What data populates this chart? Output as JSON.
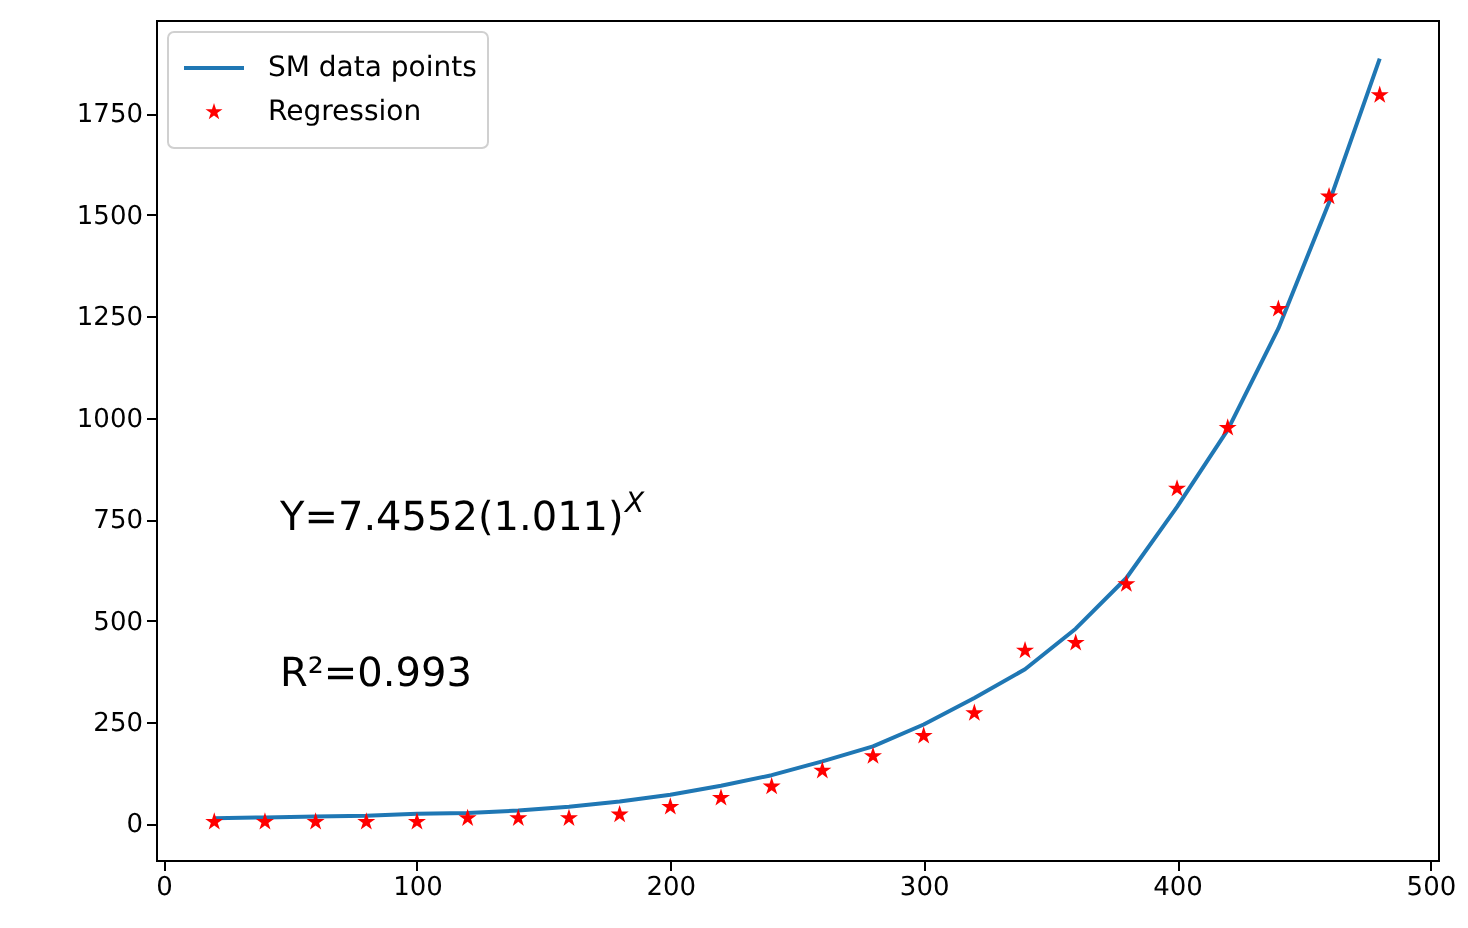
{
  "chart_data": {
    "type": "line",
    "x": [
      20,
      40,
      60,
      80,
      100,
      120,
      140,
      160,
      180,
      200,
      220,
      240,
      260,
      280,
      300,
      320,
      340,
      360,
      380,
      400,
      420,
      440,
      460,
      480
    ],
    "series": [
      {
        "name": "SM data points",
        "color": "#1f77b4",
        "marker": "none",
        "line_style": "solid",
        "values": [
          13,
          15,
          17,
          19,
          24,
          26,
          32,
          41,
          54,
          71,
          93,
          119,
          153,
          190,
          244,
          309,
          380,
          480,
          605,
          780,
          970,
          1220,
          1530,
          1885
        ]
      },
      {
        "name": "Regression",
        "type": "scatter",
        "color": "#ff0000",
        "marker": "star",
        "values": [
          4,
          4,
          4,
          4,
          4,
          13,
          13,
          13,
          22,
          41,
          63,
          91,
          130,
          166,
          216,
          272,
          426,
          445,
          590,
          825,
          975,
          1268,
          1545,
          1795
        ]
      }
    ],
    "xlim": [
      -3,
      503
    ],
    "xticks": [
      0,
      100,
      200,
      300,
      400,
      500
    ],
    "ylim": [
      -90,
      1980
    ],
    "yticks": [
      0,
      250,
      500,
      750,
      1000,
      1250,
      1500,
      1750
    ],
    "grid": false,
    "legend": "top left",
    "annotations": [
      "Y=7.4552(1.011)$^{X}$",
      "R²=0.993"
    ]
  }
}
